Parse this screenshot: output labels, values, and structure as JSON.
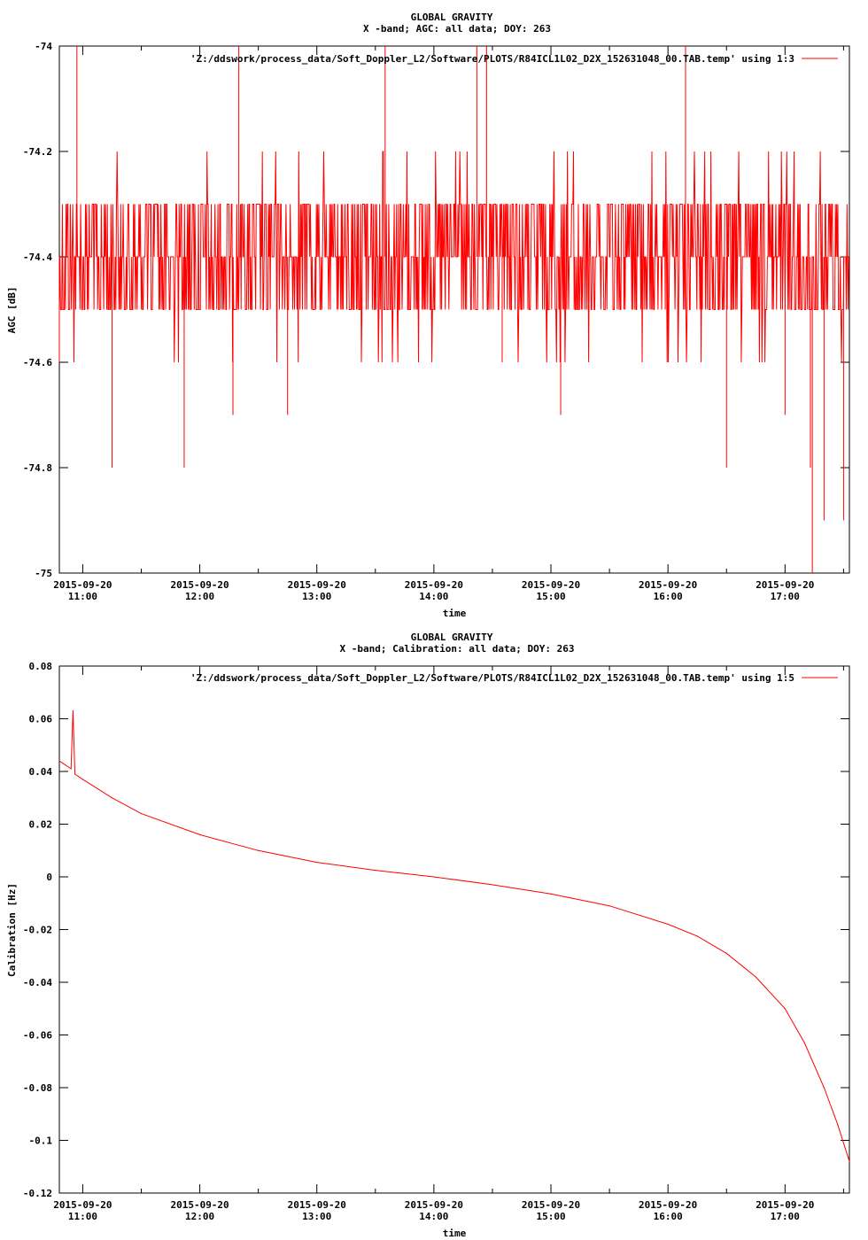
{
  "chart_data": [
    {
      "type": "line",
      "title": "GLOBAL GRAVITY",
      "subtitle": "X -band; AGC: all data; DOY: 263",
      "xlabel": "time",
      "ylabel": "AGC [dB]",
      "x_tick_date": "2015-09-20",
      "x_ticks": [
        "11:00",
        "12:00",
        "13:00",
        "14:00",
        "15:00",
        "16:00",
        "17:00"
      ],
      "xlim": [
        "10:48",
        "17:33"
      ],
      "y_ticks": [
        "-74",
        "-74.2",
        "-74.4",
        "-74.6",
        "-74.8",
        "-75"
      ],
      "ylim": [
        -75,
        -74
      ],
      "grid": false,
      "legend_position": "top-right",
      "series": [
        {
          "name": "'Z:/ddswork/process_data/Soft_Doppler_L2/Software/PLOTS/R84ICL1L02_D2X_152631048_00.TAB.temp' using 1:3",
          "color": "#ff0000",
          "baseline": -74.4,
          "band": [
            -74.5,
            -74.3
          ],
          "spikes": [
            {
              "time": "10:48",
              "value": -74.6
            },
            {
              "time": "10:57",
              "value": -74.0
            },
            {
              "time": "11:15",
              "value": -74.8
            },
            {
              "time": "11:35",
              "value": -74.3
            },
            {
              "time": "11:52",
              "value": -74.8
            },
            {
              "time": "12:17",
              "value": -74.7
            },
            {
              "time": "12:20",
              "value": -74.0
            },
            {
              "time": "12:45",
              "value": -74.7
            },
            {
              "time": "13:10",
              "value": -74.4
            },
            {
              "time": "13:30",
              "value": -74.3
            },
            {
              "time": "13:35",
              "value": -74.0
            },
            {
              "time": "14:22",
              "value": -74.0
            },
            {
              "time": "14:27",
              "value": -74.0
            },
            {
              "time": "14:35",
              "value": -74.6
            },
            {
              "time": "15:05",
              "value": -74.7
            },
            {
              "time": "16:09",
              "value": -74.0
            },
            {
              "time": "16:30",
              "value": -74.8
            },
            {
              "time": "17:00",
              "value": -74.7
            },
            {
              "time": "17:13",
              "value": -74.8
            },
            {
              "time": "17:14",
              "value": -75.0
            },
            {
              "time": "17:20",
              "value": -74.9
            },
            {
              "time": "17:30",
              "value": -74.9
            }
          ]
        }
      ]
    },
    {
      "type": "line",
      "title": "GLOBAL GRAVITY",
      "subtitle": "X -band; Calibration: all data; DOY: 263",
      "xlabel": "time",
      "ylabel": "Calibration [Hz]",
      "x_tick_date": "2015-09-20",
      "x_ticks": [
        "11:00",
        "12:00",
        "13:00",
        "14:00",
        "15:00",
        "16:00",
        "17:00"
      ],
      "xlim": [
        "10:48",
        "17:33"
      ],
      "y_ticks": [
        "0.08",
        "0.06",
        "0.04",
        "0.02",
        "0",
        "-0.02",
        "-0.04",
        "-0.06",
        "-0.08",
        "-0.1",
        "-0.12"
      ],
      "ylim": [
        -0.12,
        0.08
      ],
      "grid": false,
      "legend_position": "top-right",
      "series": [
        {
          "name": "'Z:/ddswork/process_data/Soft_Doppler_L2/Software/PLOTS/R84ICL1L02_D2X_152631048_00.TAB.temp' using 1:5",
          "color": "#ff0000",
          "points": [
            {
              "time": "10:48",
              "value": 0.044
            },
            {
              "time": "10:54",
              "value": 0.041
            },
            {
              "time": "10:55",
              "value": 0.063
            },
            {
              "time": "10:56",
              "value": 0.039
            },
            {
              "time": "11:00",
              "value": 0.037
            },
            {
              "time": "11:15",
              "value": 0.03
            },
            {
              "time": "11:30",
              "value": 0.024
            },
            {
              "time": "12:00",
              "value": 0.016
            },
            {
              "time": "12:30",
              "value": 0.01
            },
            {
              "time": "13:00",
              "value": 0.0055
            },
            {
              "time": "13:30",
              "value": 0.0025
            },
            {
              "time": "14:00",
              "value": 0.0
            },
            {
              "time": "14:30",
              "value": -0.003
            },
            {
              "time": "15:00",
              "value": -0.0065
            },
            {
              "time": "15:30",
              "value": -0.011
            },
            {
              "time": "16:00",
              "value": -0.018
            },
            {
              "time": "16:15",
              "value": -0.0225
            },
            {
              "time": "16:30",
              "value": -0.029
            },
            {
              "time": "16:45",
              "value": -0.038
            },
            {
              "time": "17:00",
              "value": -0.05
            },
            {
              "time": "17:10",
              "value": -0.063
            },
            {
              "time": "17:20",
              "value": -0.08
            },
            {
              "time": "17:27",
              "value": -0.094
            },
            {
              "time": "17:33",
              "value": -0.108
            }
          ]
        }
      ]
    }
  ]
}
